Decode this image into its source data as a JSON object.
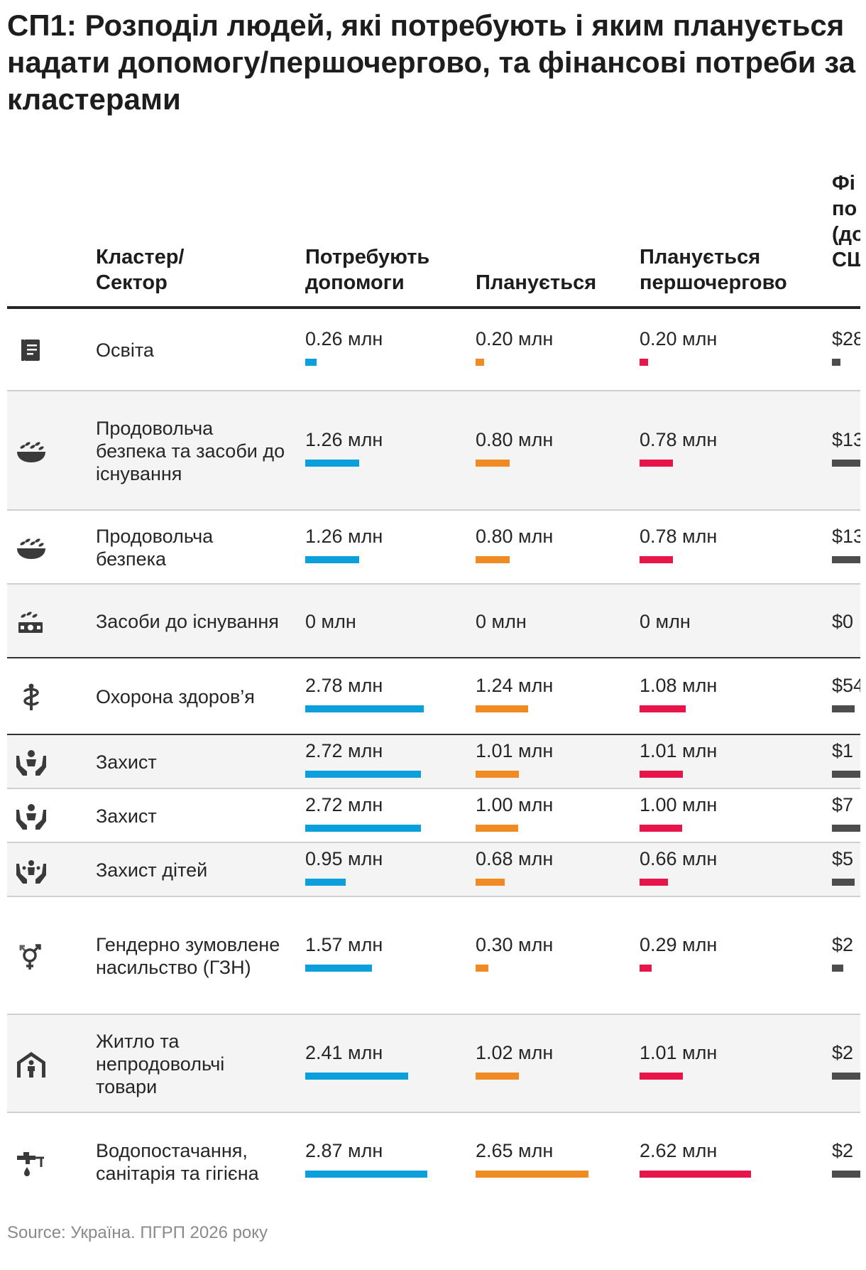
{
  "title": "СП1: Розподіл людей, які потребують і яким планується надати допомогу/першочергово, та фінансові потреби за кластерами",
  "columns": {
    "cluster": [
      "Кластер/",
      "Сектор"
    ],
    "need": [
      "Потребують",
      "допомоги"
    ],
    "plan": [
      "Планується"
    ],
    "prio": [
      "Планується",
      "першочергово"
    ],
    "fin": [
      "Фі",
      "по",
      "(до",
      "СШ"
    ]
  },
  "colors": {
    "need": "#0ba0dc",
    "plan": "#f08a22",
    "prio": "#e8154b",
    "fin": "#4d4d4d",
    "rule": "#262626"
  },
  "chart_data": {
    "type": "table",
    "title": "СП1: Розподіл людей, які потребують і яким планується надати допомогу/першочергово, та фінансові потреби за кластерами",
    "unit": "млн",
    "series": [
      {
        "name": "Потребують допомоги",
        "key": "need"
      },
      {
        "name": "Планується",
        "key": "plan"
      },
      {
        "name": "Планується першочергово",
        "key": "prio"
      },
      {
        "name": "Фінансові потреби",
        "key": "fin"
      }
    ],
    "rows": [
      {
        "icon": "education-icon",
        "name": "Освіта",
        "need": 0.26,
        "plan": 0.2,
        "prio": 0.2,
        "need_label": "0.26 млн",
        "plan_label": "0.20 млн",
        "prio_label": "0.20 млн",
        "fin_label": "$28",
        "fin_fill": 0.3
      },
      {
        "icon": "food-bowl-icon",
        "name": "Продовольча безпека та засоби до існування",
        "need": 1.26,
        "plan": 0.8,
        "prio": 0.78,
        "need_label": "1.26 млн",
        "plan_label": "0.80 млн",
        "prio_label": "0.78 млн",
        "fin_label": "$13",
        "fin_fill": 1.0
      },
      {
        "icon": "food-bowl-icon",
        "name": "Продовольча безпека",
        "need": 1.26,
        "plan": 0.8,
        "prio": 0.78,
        "need_label": "1.26 млн",
        "plan_label": "0.80 млн",
        "prio_label": "0.78 млн",
        "fin_label": "$13",
        "fin_fill": 1.0
      },
      {
        "icon": "livelihoods-icon",
        "name": "Засоби до існування",
        "need": 0,
        "plan": 0,
        "prio": 0,
        "need_label": "0 млн",
        "plan_label": "0 млн",
        "prio_label": "0 млн",
        "fin_label": "$0",
        "fin_fill": 0,
        "no_bars": true
      },
      {
        "icon": "health-icon",
        "name": "Охорона здоров’я",
        "need": 2.78,
        "plan": 1.24,
        "prio": 1.08,
        "need_label": "2.78 млн",
        "plan_label": "1.24 млн",
        "prio_label": "1.08 млн",
        "fin_label": "$54",
        "fin_fill": 0.8
      },
      {
        "icon": "protection-icon",
        "name": "Захист",
        "need": 2.72,
        "plan": 1.01,
        "prio": 1.01,
        "need_label": "2.72 млн",
        "plan_label": "1.01 млн",
        "prio_label": "1.01 млн",
        "fin_label": "$1",
        "fin_fill": 1.0
      },
      {
        "icon": "protection-icon",
        "name": "Захист",
        "need": 2.72,
        "plan": 1.0,
        "prio": 1.0,
        "need_label": "2.72 млн",
        "plan_label": "1.00 млн",
        "prio_label": "1.00 млн",
        "fin_label": "$7",
        "fin_fill": 1.0
      },
      {
        "icon": "child-protection-icon",
        "name": "Захист дітей",
        "need": 0.95,
        "plan": 0.68,
        "prio": 0.66,
        "need_label": "0.95 млн",
        "plan_label": "0.68 млн",
        "prio_label": "0.66 млн",
        "fin_label": "$5",
        "fin_fill": 0.8
      },
      {
        "icon": "gender-icon",
        "name": "Гендерно зумовлене насильство (ГЗН)",
        "need": 1.57,
        "plan": 0.3,
        "prio": 0.29,
        "need_label": "1.57 млн",
        "plan_label": "0.30 млн",
        "prio_label": "0.29 млн",
        "fin_label": "$2",
        "fin_fill": 0.4
      },
      {
        "icon": "shelter-icon",
        "name": "Житло та непродовольчі товари",
        "need": 2.41,
        "plan": 1.02,
        "prio": 1.01,
        "need_label": "2.41 млн",
        "plan_label": "1.02 млн",
        "prio_label": "1.01 млн",
        "fin_label": "$2",
        "fin_fill": 1.0
      },
      {
        "icon": "wash-icon",
        "name": "Водопостачання, санітарія та гігієна",
        "need": 2.87,
        "plan": 2.65,
        "prio": 2.62,
        "need_label": "2.87 млн",
        "plan_label": "2.65 млн",
        "prio_label": "2.62 млн",
        "fin_label": "$2",
        "fin_fill": 1.0
      }
    ]
  },
  "source": "Source: Україна. ПГРП 2026 року"
}
